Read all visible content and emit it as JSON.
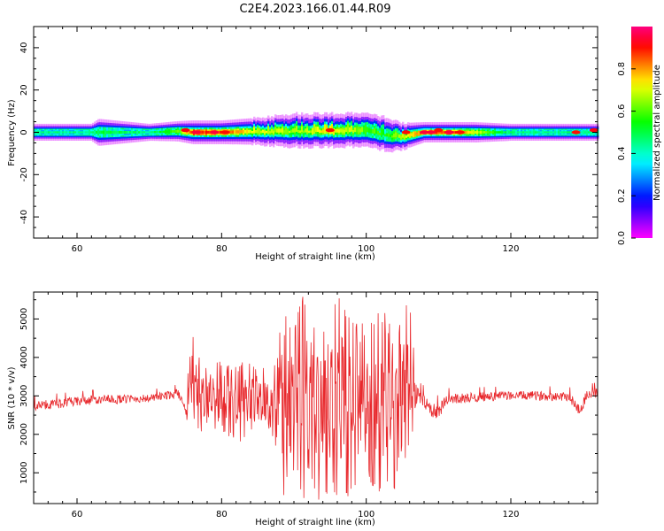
{
  "figure": {
    "title": "C2E4.2023.166.01.44.R09"
  },
  "chart_data": [
    {
      "type": "heatmap",
      "title": "C2E4.2023.166.01.44.R09",
      "xlabel": "Height of straight line (km)",
      "ylabel": "Frequency (Hz)",
      "xlim": [
        54,
        132
      ],
      "ylim": [
        -50,
        50
      ],
      "xticks": [
        60,
        80,
        100,
        120
      ],
      "yticks": [
        -40,
        -20,
        0,
        20,
        40
      ],
      "colorbar": {
        "label": "Normalized spectral amplitude",
        "range": [
          0,
          1
        ],
        "ticks": [
          0.0,
          0.2,
          0.4,
          0.6,
          0.8
        ],
        "colormap": "hsv"
      },
      "band_profile": [
        {
          "x": 54,
          "center": 0,
          "halfwidth": 2.5,
          "peak": 0.45
        },
        {
          "x": 62,
          "center": 0,
          "halfwidth": 2.5,
          "peak": 0.45
        },
        {
          "x": 63,
          "center": 0,
          "halfwidth": 4,
          "peak": 0.5
        },
        {
          "x": 70,
          "center": 0,
          "halfwidth": 2.5,
          "peak": 0.45
        },
        {
          "x": 74,
          "center": 0.5,
          "halfwidth": 3,
          "peak": 0.6
        },
        {
          "x": 76,
          "center": 0,
          "halfwidth": 3.5,
          "peak": 0.9
        },
        {
          "x": 80,
          "center": 0,
          "halfwidth": 3.5,
          "peak": 0.85
        },
        {
          "x": 85,
          "center": 0.5,
          "halfwidth": 4,
          "peak": 0.7
        },
        {
          "x": 90,
          "center": 1,
          "halfwidth": 5,
          "peak": 0.65
        },
        {
          "x": 95,
          "center": 1,
          "halfwidth": 5,
          "peak": 0.75
        },
        {
          "x": 100,
          "center": 1,
          "halfwidth": 5,
          "peak": 0.6
        },
        {
          "x": 103,
          "center": -1,
          "halfwidth": 5,
          "peak": 0.55
        },
        {
          "x": 105,
          "center": -2,
          "halfwidth": 4,
          "peak": 0.7
        },
        {
          "x": 108,
          "center": 0,
          "halfwidth": 3,
          "peak": 0.85
        },
        {
          "x": 112,
          "center": 0,
          "halfwidth": 3,
          "peak": 0.9
        },
        {
          "x": 115,
          "center": 0,
          "halfwidth": 3,
          "peak": 0.7
        },
        {
          "x": 120,
          "center": 0,
          "halfwidth": 2.5,
          "peak": 0.45
        },
        {
          "x": 132,
          "center": 0,
          "halfwidth": 2.5,
          "peak": 0.45
        }
      ],
      "hot_spots": [
        {
          "x": 75,
          "y": 1,
          "value": 0.92
        },
        {
          "x": 76.5,
          "y": 0,
          "value": 0.95
        },
        {
          "x": 79,
          "y": 0,
          "value": 0.95
        },
        {
          "x": 80.5,
          "y": 0,
          "value": 0.9
        },
        {
          "x": 95,
          "y": 1,
          "value": 0.9
        },
        {
          "x": 105.5,
          "y": 0,
          "value": 0.9
        },
        {
          "x": 108,
          "y": 0,
          "value": 0.95
        },
        {
          "x": 109,
          "y": 0,
          "value": 0.95
        },
        {
          "x": 110,
          "y": 1,
          "value": 0.9
        },
        {
          "x": 111.5,
          "y": 0,
          "value": 0.95
        },
        {
          "x": 113,
          "y": 0,
          "value": 0.9
        },
        {
          "x": 129,
          "y": 0,
          "value": 0.9
        },
        {
          "x": 131.5,
          "y": 1,
          "value": 0.92
        }
      ]
    },
    {
      "type": "line",
      "xlabel": "Height of straight line (km)",
      "ylabel": "SNR (10 * v/v)",
      "xlim": [
        54,
        132
      ],
      "ylim": [
        200,
        5700
      ],
      "xticks": [
        60,
        80,
        100,
        120
      ],
      "yticks": [
        1000,
        2000,
        3000,
        4000,
        5000
      ],
      "color": "#e8282c",
      "envelope": [
        {
          "x": 54,
          "low": 2450,
          "high": 3000
        },
        {
          "x": 62,
          "low": 2600,
          "high": 3150
        },
        {
          "x": 70,
          "low": 2700,
          "high": 3150
        },
        {
          "x": 74,
          "low": 2800,
          "high": 3300
        },
        {
          "x": 75,
          "low": 2400,
          "high": 3000
        },
        {
          "x": 76,
          "low": 1850,
          "high": 4700
        },
        {
          "x": 78,
          "low": 2200,
          "high": 3800
        },
        {
          "x": 80,
          "low": 2100,
          "high": 3900
        },
        {
          "x": 82,
          "low": 1700,
          "high": 3900
        },
        {
          "x": 85,
          "low": 2300,
          "high": 3800
        },
        {
          "x": 87,
          "low": 2000,
          "high": 3600
        },
        {
          "x": 88.5,
          "low": 400,
          "high": 5300
        },
        {
          "x": 90,
          "low": 700,
          "high": 4600
        },
        {
          "x": 91,
          "low": 300,
          "high": 5650
        },
        {
          "x": 93,
          "low": 250,
          "high": 5000
        },
        {
          "x": 95,
          "low": 500,
          "high": 5200
        },
        {
          "x": 96.5,
          "low": 300,
          "high": 5600
        },
        {
          "x": 98,
          "low": 400,
          "high": 4900
        },
        {
          "x": 100,
          "low": 700,
          "high": 4900
        },
        {
          "x": 102,
          "low": 450,
          "high": 5200
        },
        {
          "x": 104,
          "low": 600,
          "high": 5200
        },
        {
          "x": 106,
          "low": 1200,
          "high": 5400
        },
        {
          "x": 107,
          "low": 2700,
          "high": 3400
        },
        {
          "x": 110,
          "low": 1900,
          "high": 3000
        },
        {
          "x": 111,
          "low": 2600,
          "high": 3200
        },
        {
          "x": 120,
          "low": 2750,
          "high": 3250
        },
        {
          "x": 128,
          "low": 2700,
          "high": 3250
        },
        {
          "x": 129.5,
          "low": 2200,
          "high": 3000
        },
        {
          "x": 130.5,
          "low": 2700,
          "high": 3300
        },
        {
          "x": 132,
          "low": 2750,
          "high": 3350
        }
      ]
    }
  ]
}
